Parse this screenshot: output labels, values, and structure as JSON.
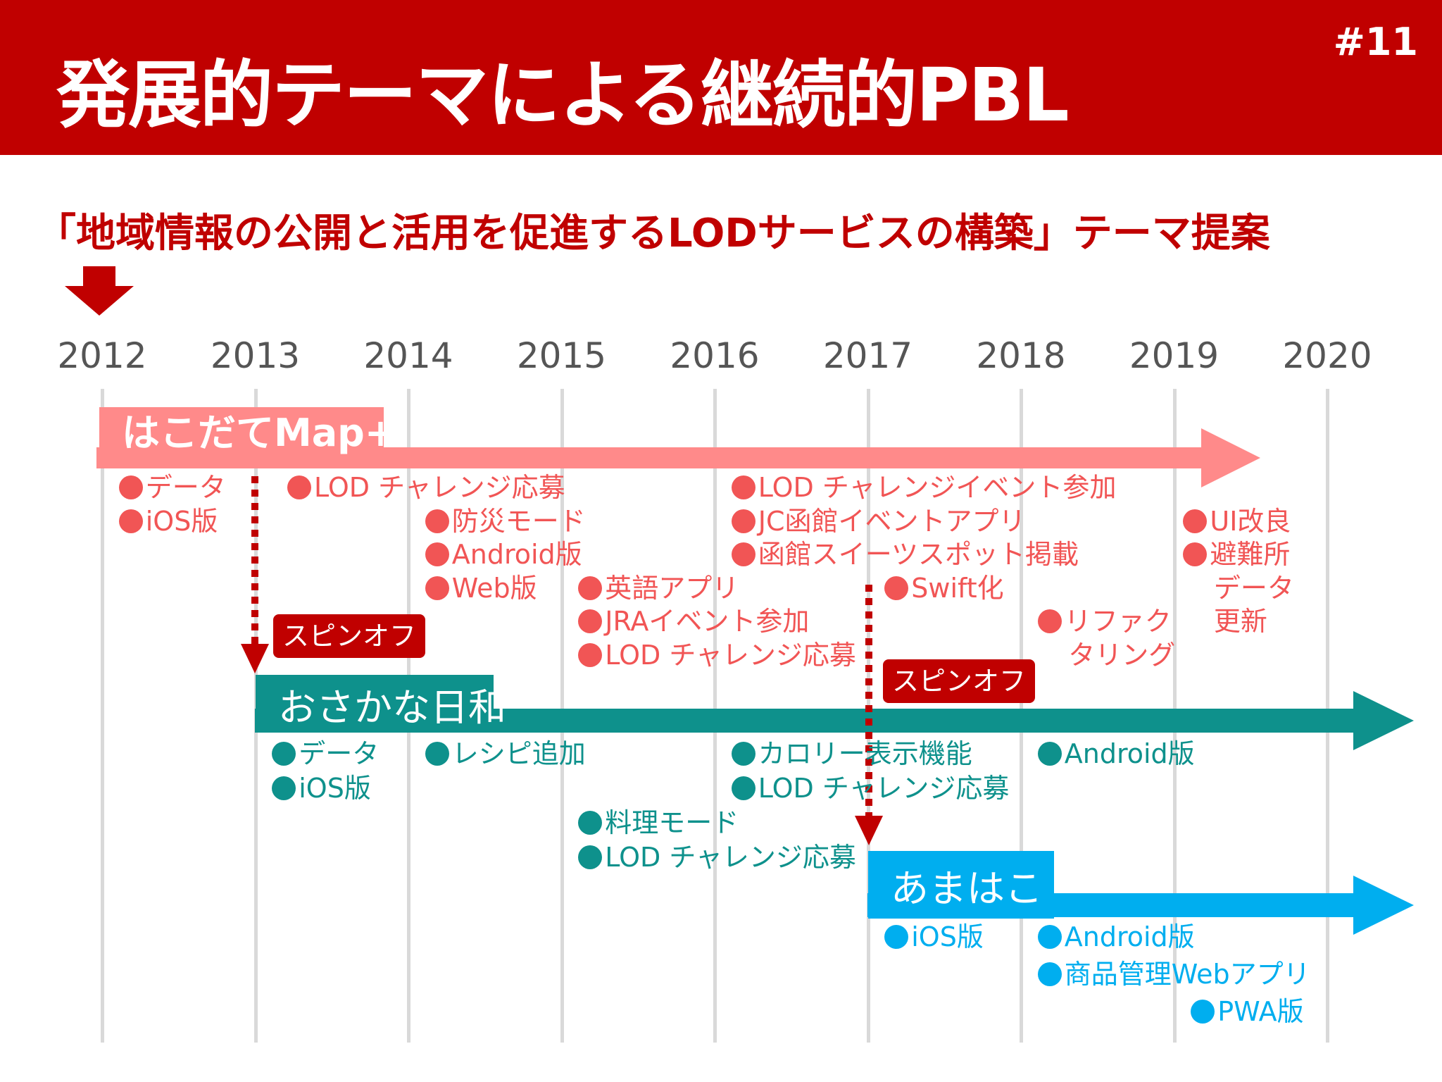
{
  "slide": {
    "title": "発展的テーマによる継続的PBL",
    "page_number": "#11",
    "subtitle": "「地域情報の公開と活用を促進するLODサービスの構築」テーマ提案"
  },
  "colors": {
    "header": "#c00000",
    "subtitle": "#c00000",
    "hakodate": "#ff8a8a",
    "hakodate_text": "#f15555",
    "osakana": "#0e918c",
    "amahako": "#00aeef",
    "spinoff": "#c00000",
    "gridline": "#d9d9d9"
  },
  "years": [
    "2012",
    "2013",
    "2014",
    "2015",
    "2016",
    "2017",
    "2018",
    "2019",
    "2020"
  ],
  "spinoff_label": "スピンオフ",
  "tracks": {
    "hakodate": {
      "label": "はこだてMap+",
      "items": [
        {
          "text": "データ",
          "year": 2012.1,
          "row": 0
        },
        {
          "text": "iOS版",
          "year": 2012.1,
          "row": 1
        },
        {
          "text": "LOD チャレンジ応募",
          "year": 2013.2,
          "row": 0
        },
        {
          "text": "防災モード",
          "year": 2014.1,
          "row": 1
        },
        {
          "text": "Android版",
          "year": 2014.1,
          "row": 2
        },
        {
          "text": "Web版",
          "year": 2014.1,
          "row": 3
        },
        {
          "text": "英語アプリ",
          "year": 2015.1,
          "row": 3
        },
        {
          "text": "JRAイベント参加",
          "year": 2015.1,
          "row": 4
        },
        {
          "text": "LOD チャレンジ応募",
          "year": 2015.1,
          "row": 5
        },
        {
          "text": "LOD チャレンジイベント参加",
          "year": 2016.1,
          "row": 0
        },
        {
          "text": "JC函館イベントアプリ",
          "year": 2016.1,
          "row": 1
        },
        {
          "text": "函館スイーツスポット掲載",
          "year": 2016.1,
          "row": 2
        },
        {
          "text": "Swift化",
          "year": 2017.1,
          "row": 3
        },
        {
          "text": "リファク",
          "year": 2018.1,
          "row": 4
        },
        {
          "text": "タリング",
          "year": 2018.3,
          "row": 5
        },
        {
          "text": "UI改良",
          "year": 2019.05,
          "row": 1
        },
        {
          "text": "避難所",
          "year": 2019.05,
          "row": 2
        },
        {
          "text": "データ",
          "year": 2019.25,
          "row": 3
        },
        {
          "text": "更新",
          "year": 2019.25,
          "row": 4
        }
      ]
    },
    "osakana": {
      "label": "おさかな日和",
      "items": [
        {
          "text": "データ",
          "year": 2013.1,
          "row": 0
        },
        {
          "text": "iOS版",
          "year": 2013.1,
          "row": 1
        },
        {
          "text": "レシピ追加",
          "year": 2014.1,
          "row": 0
        },
        {
          "text": "カロリー表示機能",
          "year": 2016.1,
          "row": 0
        },
        {
          "text": "LOD チャレンジ応募",
          "year": 2016.1,
          "row": 1
        },
        {
          "text": "料理モード",
          "year": 2015.1,
          "row": 2
        },
        {
          "text": "LOD チャレンジ応募",
          "year": 2015.1,
          "row": 3
        },
        {
          "text": "Android版",
          "year": 2018.1,
          "row": 0
        }
      ]
    },
    "amahako": {
      "label": "あまはこ",
      "items": [
        {
          "text": "iOS版",
          "year": 2017.1,
          "row": 0
        },
        {
          "text": "Android版",
          "year": 2018.1,
          "row": 0
        },
        {
          "text": "商品管理Webアプリ",
          "year": 2018.1,
          "row": 1
        },
        {
          "text": "PWA版",
          "year": 2019.1,
          "row": 2
        }
      ]
    }
  }
}
